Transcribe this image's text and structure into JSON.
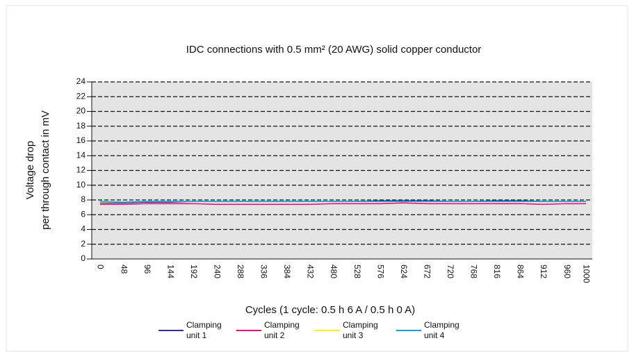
{
  "chart_data": {
    "type": "line",
    "title": "IDC connections with 0.5 mm² (20 AWG) solid copper conductor",
    "y_label": [
      "Voltage drop",
      "per through contact in mV"
    ],
    "x_label": "Cycles (1 cycle: 0.5 h 6 A / 0.5 h 0 A)",
    "x": [
      0,
      48,
      96,
      144,
      192,
      240,
      288,
      336,
      384,
      432,
      480,
      528,
      576,
      624,
      672,
      720,
      768,
      816,
      864,
      912,
      960,
      1000
    ],
    "xlim": [
      -17,
      1013
    ],
    "xticks": [
      0,
      48,
      96,
      144,
      192,
      240,
      288,
      336,
      384,
      432,
      480,
      528,
      576,
      624,
      672,
      720,
      768,
      816,
      864,
      912,
      960,
      1000
    ],
    "ylim": [
      0,
      24
    ],
    "yticks": [
      0,
      2,
      4,
      6,
      8,
      10,
      12,
      14,
      16,
      18,
      20,
      22,
      24
    ],
    "grid": true,
    "series": [
      {
        "name": "Clamping unit 1",
        "color": "#2e3192",
        "values": [
          7.6,
          7.6,
          7.7,
          7.7,
          7.8,
          7.8,
          7.8,
          7.8,
          7.8,
          7.8,
          7.8,
          7.8,
          7.9,
          7.9,
          7.9,
          7.8,
          7.8,
          7.9,
          7.9,
          7.8,
          7.8,
          7.8
        ]
      },
      {
        "name": "Clamping unit 2",
        "color": "#e6007e",
        "values": [
          7.4,
          7.4,
          7.5,
          7.5,
          7.5,
          7.4,
          7.4,
          7.4,
          7.4,
          7.4,
          7.5,
          7.5,
          7.5,
          7.6,
          7.5,
          7.5,
          7.5,
          7.5,
          7.5,
          7.4,
          7.5,
          7.5
        ]
      },
      {
        "name": "Clamping unit 3",
        "color": "#ffed00",
        "values": [
          7.7,
          7.7,
          7.8,
          7.8,
          7.8,
          7.8,
          7.8,
          7.8,
          7.8,
          7.8,
          7.8,
          7.8,
          7.8,
          7.8,
          7.8,
          7.8,
          7.8,
          7.8,
          7.8,
          7.8,
          7.8,
          7.8
        ]
      },
      {
        "name": "Clamping unit 4",
        "color": "#009fe3",
        "values": [
          7.8,
          7.7,
          7.8,
          7.8,
          7.8,
          7.8,
          7.8,
          7.8,
          7.8,
          7.8,
          7.8,
          7.8,
          7.8,
          7.8,
          7.8,
          7.8,
          7.8,
          7.8,
          7.8,
          7.8,
          7.8,
          7.8
        ]
      }
    ]
  }
}
